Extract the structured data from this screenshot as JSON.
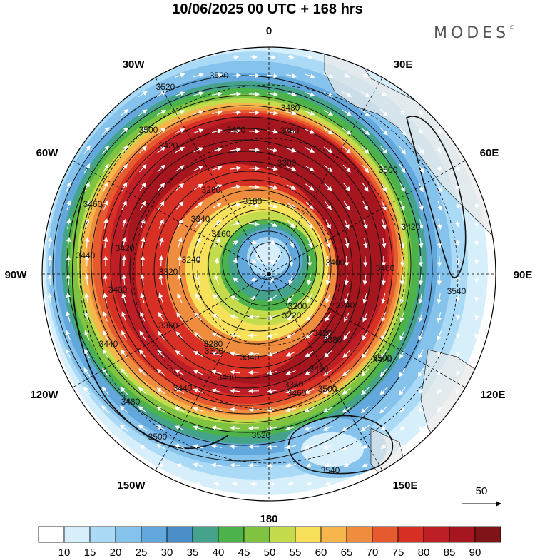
{
  "title": "10/06/2025  00 UTC  + 168 hrs",
  "logo": "MODES",
  "logo_mark": "©",
  "longitude_labels": [
    {
      "text": "0",
      "id": "lon-0"
    },
    {
      "text": "30E",
      "id": "lon-30e"
    },
    {
      "text": "60E",
      "id": "lon-60e"
    },
    {
      "text": "90E",
      "id": "lon-90e"
    },
    {
      "text": "120E",
      "id": "lon-120e"
    },
    {
      "text": "150E",
      "id": "lon-150e"
    },
    {
      "text": "180",
      "id": "lon-180"
    },
    {
      "text": "150W",
      "id": "lon-150w"
    },
    {
      "text": "120W",
      "id": "lon-120w"
    },
    {
      "text": "90W",
      "id": "lon-90w"
    },
    {
      "text": "60W",
      "id": "lon-60w"
    },
    {
      "text": "30W",
      "id": "lon-30w"
    }
  ],
  "contour_labels": [
    "3520",
    "3520",
    "3480",
    "3500",
    "3420",
    "3400",
    "3360",
    "3300",
    "3280",
    "3180",
    "3460",
    "3440",
    "3420",
    "3400",
    "3340",
    "3160",
    "3500",
    "3420",
    "3460",
    "3400",
    "3320",
    "3240",
    "3240",
    "3360",
    "3220",
    "3200",
    "3280",
    "3300",
    "3340",
    "3400",
    "3440",
    "3480",
    "3500",
    "3500",
    "3520",
    "3540",
    "3540",
    "3500",
    "3460",
    "3420",
    "3380",
    "3440",
    "3360",
    "3460",
    "3420"
  ],
  "wind_reference": {
    "value": "50"
  },
  "colorbar": {
    "labels": [
      "10",
      "15",
      "20",
      "25",
      "30",
      "35",
      "40",
      "45",
      "50",
      "55",
      "60",
      "65",
      "70",
      "75",
      "80",
      "85",
      "90"
    ],
    "colors": [
      "#ffffff",
      "#d6effb",
      "#aadaf5",
      "#86c3ec",
      "#62a8dc",
      "#4b8fc9",
      "#44a38a",
      "#4cb24a",
      "#80c341",
      "#c4dc4b",
      "#f7e05a",
      "#f7b64b",
      "#f08c3d",
      "#e65a2f",
      "#d93026",
      "#be1f26",
      "#a5161f",
      "#7f1418"
    ]
  },
  "colors": {
    "background": "#ffffff",
    "land": "#e8e8e8",
    "contour": "#111111",
    "wind_arrows": "#ffffff"
  }
}
